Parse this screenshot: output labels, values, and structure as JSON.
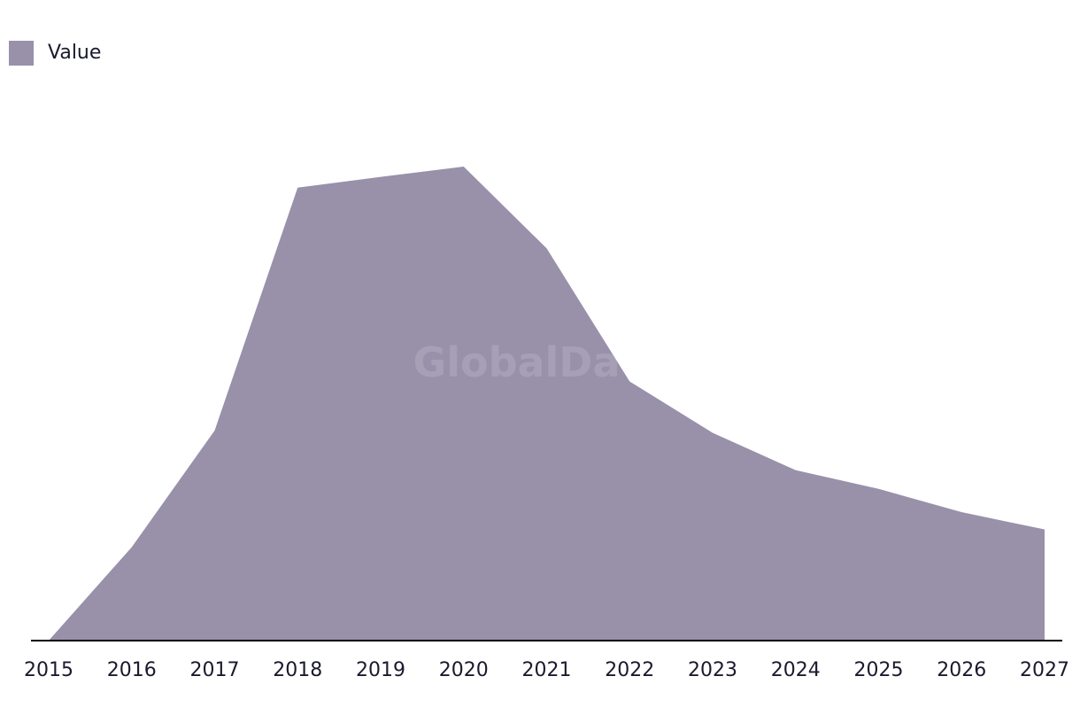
{
  "legend": {
    "label": "Value"
  },
  "watermark": "GlobalData",
  "chart_data": {
    "type": "area",
    "x": [
      "2015",
      "2016",
      "2017",
      "2018",
      "2019",
      "2020",
      "2021",
      "2022",
      "2023",
      "2024",
      "2025",
      "2026",
      "2027"
    ],
    "series": [
      {
        "name": "Value",
        "values": [
          0,
          20,
          45,
          97,
          99.3,
          101.5,
          84,
          55.5,
          44.5,
          36.5,
          32.5,
          27.5,
          23.8
        ],
        "color": "#9990aa"
      }
    ],
    "title": "",
    "xlabel": "",
    "ylabel": "",
    "ylim": [
      0,
      122
    ],
    "grid": false,
    "legend_position": "top-left",
    "axis_color": "#000000"
  }
}
